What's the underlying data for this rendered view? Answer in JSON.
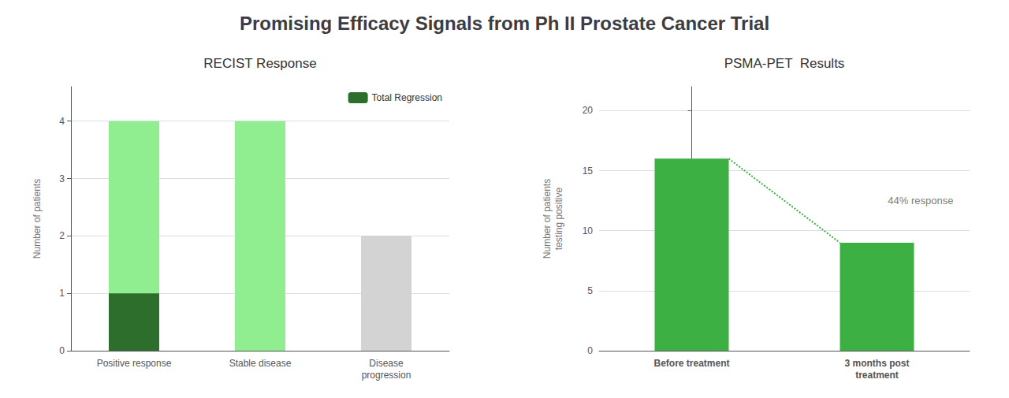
{
  "title": "Promising Efficacy Signals from Ph II Prostate Cancer Trial",
  "chart_data": [
    {
      "type": "bar",
      "title": "RECIST Response",
      "categories": [
        "Positive response",
        "Stable disease",
        "Disease\nprogression"
      ],
      "series": [
        {
          "colors": [
            "#90ee90",
            "#90ee90",
            "#d3d3d3"
          ],
          "values": [
            4,
            4,
            2
          ]
        },
        {
          "name": "Total Regression",
          "color": "#2d6e2d",
          "values": [
            1,
            0,
            0
          ]
        }
      ],
      "ylabel": "Number of patients",
      "ylim": [
        0,
        4.6
      ],
      "yticks": [
        0,
        1,
        2,
        3,
        4
      ],
      "grid": true,
      "legend": "upper right"
    },
    {
      "type": "bar",
      "title": "PSMA-PET  Results",
      "categories": [
        "Before treatment",
        "3 months post\ntreatment"
      ],
      "values": [
        16,
        9
      ],
      "color": "#3cb043",
      "ylabel": "Number of patients\ntesting positive",
      "ylim": [
        0,
        22
      ],
      "yticks": [
        0,
        5,
        10,
        15,
        20
      ],
      "grid": true,
      "annotation": "44% response"
    }
  ]
}
